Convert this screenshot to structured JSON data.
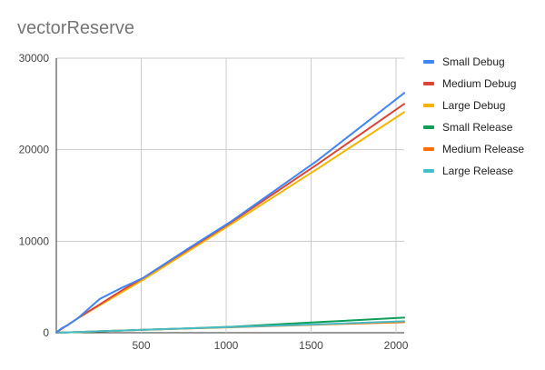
{
  "chart_data": {
    "type": "line",
    "title": "vectorReserve",
    "xlabel": "",
    "ylabel": "",
    "xlim": [
      0,
      2048
    ],
    "ylim": [
      0,
      30000
    ],
    "x_ticks": [
      500,
      1000,
      1500,
      2000
    ],
    "x_tick_labels": [
      "500",
      "1000",
      "1500",
      "2000"
    ],
    "y_ticks": [
      0,
      10000,
      20000,
      30000
    ],
    "y_tick_labels": [
      "0",
      "10000",
      "20000",
      "30000"
    ],
    "grid": true,
    "legend_position": "right",
    "series": [
      {
        "name": "Small Debug",
        "color": "#4285f4",
        "x": [
          1,
          32,
          64,
          128,
          256,
          384,
          512,
          768,
          1024,
          1536,
          2048
        ],
        "y": [
          50,
          500,
          800,
          1600,
          3700,
          4900,
          6000,
          9100,
          12100,
          18800,
          26200
        ]
      },
      {
        "name": "Medium Debug",
        "color": "#db4437",
        "x": [
          1,
          32,
          64,
          128,
          256,
          384,
          512,
          768,
          1024,
          1536,
          2048
        ],
        "y": [
          50,
          450,
          800,
          1600,
          3100,
          4600,
          6000,
          9000,
          12000,
          18400,
          25000
        ]
      },
      {
        "name": "Large Debug",
        "color": "#f4b400",
        "x": [
          1,
          32,
          64,
          128,
          256,
          384,
          512,
          768,
          1024,
          1536,
          2048
        ],
        "y": [
          50,
          450,
          800,
          1600,
          3000,
          4400,
          5800,
          8800,
          11800,
          17900,
          24100
        ]
      },
      {
        "name": "Small Release",
        "color": "#0f9d58",
        "x": [
          1,
          32,
          64,
          128,
          256,
          384,
          512,
          768,
          1024,
          1536,
          2048
        ],
        "y": [
          5,
          20,
          40,
          80,
          160,
          240,
          320,
          480,
          650,
          1150,
          1650
        ]
      },
      {
        "name": "Medium Release",
        "color": "#ff6d00",
        "x": [
          1,
          32,
          64,
          128,
          256,
          384,
          512,
          768,
          1024,
          1536,
          2048
        ],
        "y": [
          5,
          20,
          40,
          80,
          160,
          240,
          320,
          460,
          600,
          880,
          1150
        ]
      },
      {
        "name": "Large Release",
        "color": "#46bdc6",
        "x": [
          1,
          32,
          64,
          128,
          256,
          384,
          512,
          768,
          1024,
          1536,
          2048
        ],
        "y": [
          5,
          20,
          40,
          80,
          160,
          240,
          320,
          470,
          620,
          920,
          1250
        ]
      }
    ]
  }
}
